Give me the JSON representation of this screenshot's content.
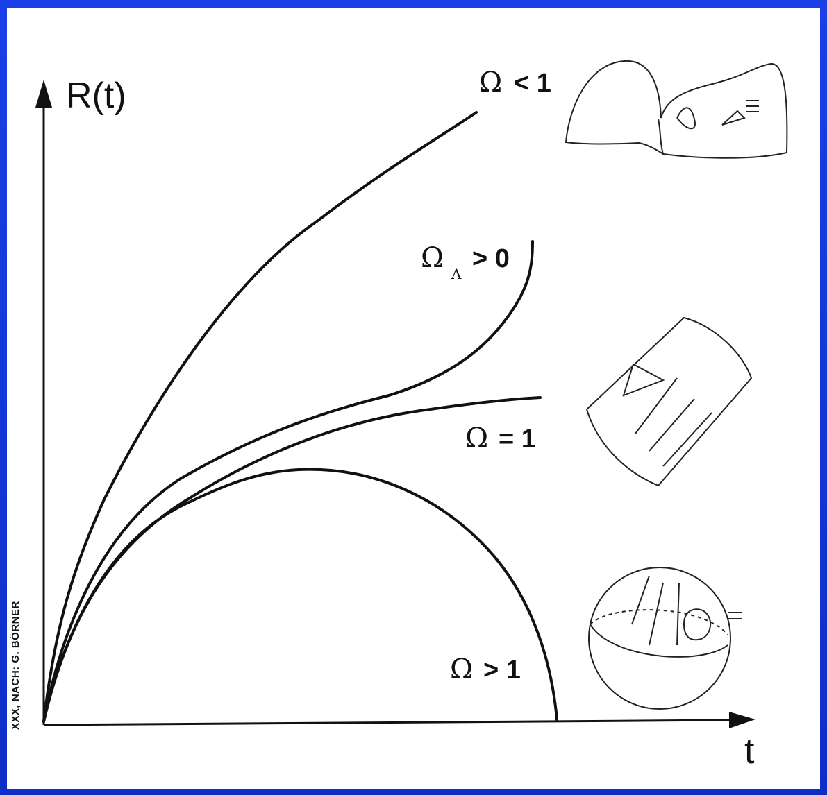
{
  "axes": {
    "y_label": "R(t)",
    "x_label": "t"
  },
  "curves": [
    {
      "label_symbol": "Ω",
      "label_relation": "< 1"
    },
    {
      "label_symbol": "Ω",
      "label_subscript": "Λ",
      "label_relation": "> 0"
    },
    {
      "label_symbol": "Ω",
      "label_relation": "= 1"
    },
    {
      "label_symbol": "Ω",
      "label_relation": "> 1"
    }
  ],
  "credit": "XXX, NACH: G. BÖRNER",
  "colors": {
    "frame": "#1d3fd6",
    "panel": "#ffffff",
    "ink": "#111111"
  },
  "icons": [
    "saddle-surface-icon",
    "flat-plane-icon",
    "sphere-icon"
  ]
}
